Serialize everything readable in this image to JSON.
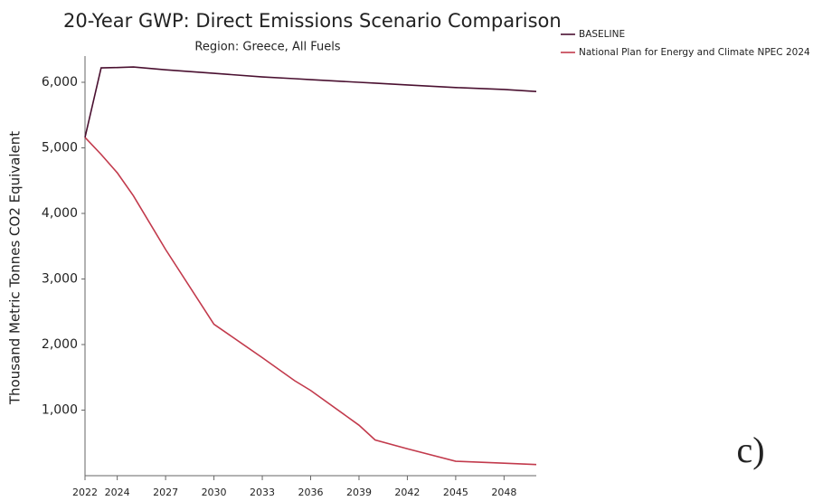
{
  "chart_data": {
    "type": "line",
    "title": "20-Year GWP: Direct Emissions Scenario Comparison",
    "subtitle": "Region: Greece, All Fuels",
    "y_label": "Thousand Metric Tonnes CO2 Equivalent",
    "annotation": "c)",
    "x": [
      2022,
      2023,
      2024,
      2025,
      2027,
      2030,
      2033,
      2035,
      2036,
      2039,
      2040,
      2042,
      2045,
      2048,
      2050
    ],
    "series": [
      {
        "name": "BASELINE",
        "color": "#4a1030",
        "values": [
          5160,
          6220,
          6225,
          6234,
          6190,
          6137,
          6082,
          6055,
          6040,
          6000,
          5987,
          5960,
          5920,
          5890,
          5860
        ]
      },
      {
        "name": "National Plan for Energy and Climate NPEC 2024",
        "color": "#c23a4c",
        "values": [
          5160,
          4900,
          4620,
          4270,
          3450,
          2310,
          1800,
          1450,
          1300,
          770,
          545,
          410,
          220,
          190,
          170
        ]
      }
    ],
    "xlim": [
      2022,
      2050
    ],
    "xticks": [
      2022,
      2024,
      2027,
      2030,
      2033,
      2036,
      2039,
      2042,
      2045,
      2048
    ],
    "ylim": [
      0,
      6400
    ],
    "yticks": [
      {
        "value": 1000,
        "label": "1,000"
      },
      {
        "value": 2000,
        "label": "2,000"
      },
      {
        "value": 3000,
        "label": "3,000"
      },
      {
        "value": 4000,
        "label": "4,000"
      },
      {
        "value": 5000,
        "label": "5,000"
      },
      {
        "value": 6000,
        "label": "6,000"
      }
    ],
    "grid": false,
    "legend": "top-right"
  }
}
